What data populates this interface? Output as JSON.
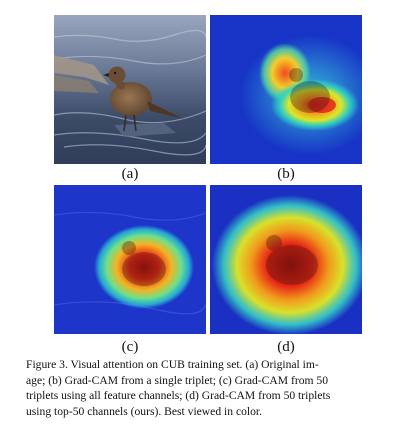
{
  "figure": {
    "panels": [
      {
        "id": "a",
        "label": "(a)",
        "content": "original-image"
      },
      {
        "id": "b",
        "label": "(b)",
        "content": "gradcam-single-triplet"
      },
      {
        "id": "c",
        "label": "(c)",
        "content": "gradcam-50-triplets-all-channels"
      },
      {
        "id": "d",
        "label": "(d)",
        "content": "gradcam-50-triplets-top50-channels"
      }
    ],
    "caption_lines": [
      "Figure 3. Visual attention on CUB training set.  (a) Original im-",
      "age; (b) Grad-CAM from a single triplet; (c) Grad-CAM from 50",
      "triplets using all feature channels; (d) Grad-CAM from 50 triplets",
      "using top-50 channels (ours). Best viewed in color."
    ]
  },
  "colors": {
    "water_dark": "#2f3d5a",
    "water_light": "#9aa6bf",
    "bird_brown": "#7a5a3a",
    "heat_low": "#1e3cd6",
    "heat_mid": "#2fd3c4",
    "heat_high": "#e11d1d"
  }
}
